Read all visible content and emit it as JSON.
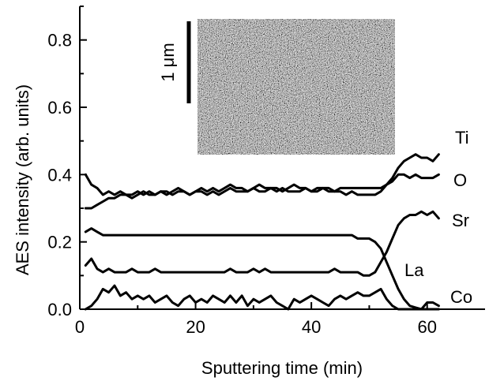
{
  "chart_data": {
    "type": "line",
    "title": "",
    "xlabel": "Sputtering time (min)",
    "ylabel": "AES intensity (arb. units)",
    "xlim": [
      0,
      70
    ],
    "ylim": [
      0,
      0.9
    ],
    "x_ticks": [
      0,
      20,
      40,
      60
    ],
    "x_tick_labels": [
      "0",
      "20",
      "40",
      "60"
    ],
    "y_ticks": [
      0.0,
      0.2,
      0.4,
      0.6,
      0.8
    ],
    "y_tick_labels": [
      "0.0",
      "0.2",
      "0.4",
      "0.6",
      "0.8"
    ],
    "grid": false,
    "legend": "direct labels at right of each series",
    "colors": {
      "line": "#000000"
    },
    "inset": {
      "type": "micrograph",
      "scale_bar_label": "1 μm"
    },
    "series": [
      {
        "name": "Ti",
        "x": [
          1,
          2,
          3,
          4,
          5,
          6,
          7,
          8,
          9,
          10,
          11,
          12,
          13,
          14,
          15,
          16,
          17,
          18,
          19,
          20,
          21,
          22,
          23,
          24,
          25,
          26,
          27,
          28,
          29,
          30,
          31,
          32,
          33,
          34,
          35,
          36,
          37,
          38,
          39,
          40,
          41,
          42,
          43,
          44,
          45,
          46,
          47,
          48,
          49,
          50,
          51,
          52,
          53,
          54,
          55,
          56,
          57,
          58,
          59,
          60,
          61,
          62
        ],
        "y": [
          0.3,
          0.3,
          0.31,
          0.32,
          0.33,
          0.33,
          0.34,
          0.34,
          0.34,
          0.35,
          0.34,
          0.35,
          0.34,
          0.35,
          0.35,
          0.34,
          0.35,
          0.35,
          0.34,
          0.35,
          0.35,
          0.34,
          0.35,
          0.34,
          0.35,
          0.36,
          0.35,
          0.35,
          0.35,
          0.36,
          0.35,
          0.35,
          0.36,
          0.35,
          0.36,
          0.35,
          0.35,
          0.35,
          0.36,
          0.35,
          0.35,
          0.36,
          0.35,
          0.35,
          0.35,
          0.34,
          0.35,
          0.34,
          0.34,
          0.34,
          0.34,
          0.35,
          0.37,
          0.39,
          0.42,
          0.44,
          0.45,
          0.46,
          0.45,
          0.45,
          0.44,
          0.46
        ]
      },
      {
        "name": "O",
        "x": [
          1,
          2,
          3,
          4,
          5,
          6,
          7,
          8,
          9,
          10,
          11,
          12,
          13,
          14,
          15,
          16,
          17,
          18,
          19,
          20,
          21,
          22,
          23,
          24,
          25,
          26,
          27,
          28,
          29,
          30,
          31,
          32,
          33,
          34,
          35,
          36,
          37,
          38,
          39,
          40,
          41,
          42,
          43,
          44,
          45,
          46,
          47,
          48,
          49,
          50,
          51,
          52,
          53,
          54,
          55,
          56,
          57,
          58,
          59,
          60,
          61,
          62
        ],
        "y": [
          0.4,
          0.37,
          0.36,
          0.34,
          0.35,
          0.34,
          0.35,
          0.34,
          0.33,
          0.34,
          0.35,
          0.34,
          0.34,
          0.35,
          0.34,
          0.35,
          0.36,
          0.35,
          0.34,
          0.35,
          0.36,
          0.35,
          0.36,
          0.35,
          0.36,
          0.37,
          0.36,
          0.36,
          0.35,
          0.36,
          0.37,
          0.36,
          0.36,
          0.36,
          0.35,
          0.36,
          0.37,
          0.36,
          0.36,
          0.35,
          0.36,
          0.36,
          0.36,
          0.35,
          0.36,
          0.36,
          0.36,
          0.36,
          0.36,
          0.36,
          0.36,
          0.36,
          0.37,
          0.38,
          0.4,
          0.4,
          0.39,
          0.4,
          0.39,
          0.39,
          0.39,
          0.4
        ]
      },
      {
        "name": "Sr",
        "x": [
          1,
          2,
          3,
          4,
          5,
          6,
          7,
          8,
          9,
          10,
          11,
          12,
          13,
          14,
          15,
          16,
          17,
          18,
          19,
          20,
          21,
          22,
          23,
          24,
          25,
          26,
          27,
          28,
          29,
          30,
          31,
          32,
          33,
          34,
          35,
          36,
          37,
          38,
          39,
          40,
          41,
          42,
          43,
          44,
          45,
          46,
          47,
          48,
          49,
          50,
          51,
          52,
          53,
          54,
          55,
          56,
          57,
          58,
          59,
          60,
          61,
          62
        ],
        "y": [
          0.13,
          0.15,
          0.12,
          0.11,
          0.12,
          0.11,
          0.11,
          0.11,
          0.12,
          0.11,
          0.11,
          0.11,
          0.12,
          0.11,
          0.11,
          0.11,
          0.11,
          0.11,
          0.11,
          0.11,
          0.11,
          0.11,
          0.11,
          0.11,
          0.11,
          0.12,
          0.11,
          0.11,
          0.11,
          0.12,
          0.11,
          0.12,
          0.11,
          0.11,
          0.11,
          0.11,
          0.11,
          0.11,
          0.11,
          0.11,
          0.11,
          0.11,
          0.11,
          0.12,
          0.11,
          0.11,
          0.11,
          0.11,
          0.1,
          0.1,
          0.11,
          0.14,
          0.17,
          0.21,
          0.25,
          0.27,
          0.28,
          0.28,
          0.29,
          0.28,
          0.29,
          0.27
        ]
      },
      {
        "name": "La",
        "x": [
          1,
          2,
          3,
          4,
          5,
          6,
          7,
          8,
          9,
          10,
          11,
          12,
          13,
          14,
          15,
          16,
          17,
          18,
          19,
          20,
          21,
          22,
          23,
          24,
          25,
          26,
          27,
          28,
          29,
          30,
          31,
          32,
          33,
          34,
          35,
          36,
          37,
          38,
          39,
          40,
          41,
          42,
          43,
          44,
          45,
          46,
          47,
          48,
          49,
          50,
          51,
          52,
          53,
          54,
          55,
          56,
          57,
          58,
          59,
          60,
          61,
          62
        ],
        "y": [
          0.23,
          0.24,
          0.23,
          0.22,
          0.22,
          0.22,
          0.22,
          0.22,
          0.22,
          0.22,
          0.22,
          0.22,
          0.22,
          0.22,
          0.22,
          0.22,
          0.22,
          0.22,
          0.22,
          0.22,
          0.22,
          0.22,
          0.22,
          0.22,
          0.22,
          0.22,
          0.22,
          0.22,
          0.22,
          0.22,
          0.22,
          0.22,
          0.22,
          0.22,
          0.22,
          0.22,
          0.22,
          0.22,
          0.22,
          0.22,
          0.22,
          0.22,
          0.22,
          0.22,
          0.22,
          0.22,
          0.22,
          0.21,
          0.21,
          0.21,
          0.2,
          0.18,
          0.14,
          0.1,
          0.06,
          0.03,
          0.01,
          0.005,
          0.0,
          0.0,
          0.0,
          0.0
        ]
      },
      {
        "name": "Co",
        "x": [
          1,
          2,
          3,
          4,
          5,
          6,
          7,
          8,
          9,
          10,
          11,
          12,
          13,
          14,
          15,
          16,
          17,
          18,
          19,
          20,
          21,
          22,
          23,
          24,
          25,
          26,
          27,
          28,
          29,
          30,
          31,
          32,
          33,
          34,
          35,
          36,
          37,
          38,
          39,
          40,
          41,
          42,
          43,
          44,
          45,
          46,
          47,
          48,
          49,
          50,
          51,
          52,
          53,
          54,
          55,
          56,
          57,
          58,
          59,
          60,
          61,
          62
        ],
        "y": [
          0.0,
          0.01,
          0.03,
          0.06,
          0.05,
          0.07,
          0.04,
          0.05,
          0.03,
          0.04,
          0.03,
          0.04,
          0.02,
          0.03,
          0.04,
          0.02,
          0.01,
          0.03,
          0.04,
          0.02,
          0.03,
          0.02,
          0.04,
          0.03,
          0.02,
          0.04,
          0.02,
          0.04,
          0.01,
          0.03,
          0.02,
          0.03,
          0.04,
          0.02,
          0.01,
          0.0,
          0.03,
          0.02,
          0.03,
          0.04,
          0.03,
          0.02,
          0.01,
          0.03,
          0.04,
          0.03,
          0.04,
          0.05,
          0.04,
          0.04,
          0.05,
          0.06,
          0.03,
          0.01,
          0.0,
          0.0,
          0.0,
          0.0,
          0.0,
          0.02,
          0.02,
          0.01
        ]
      }
    ]
  }
}
